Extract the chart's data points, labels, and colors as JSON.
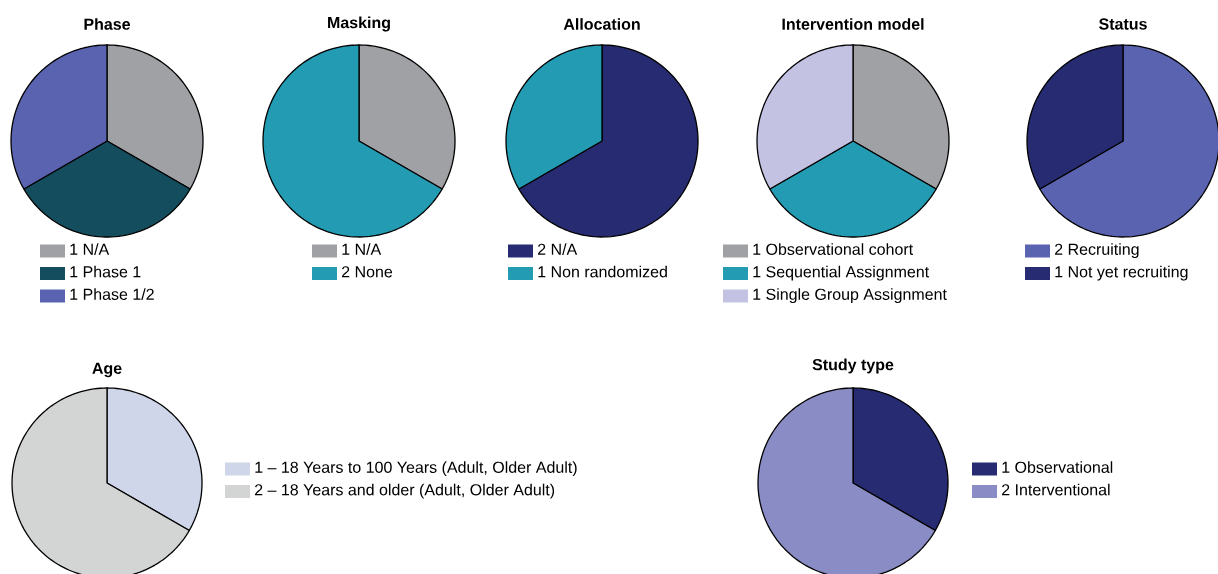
{
  "chart_data": [
    {
      "type": "pie",
      "title": "Phase",
      "categories": [
        "N/A",
        "Phase 1",
        "Phase 1/2"
      ],
      "values": [
        1,
        1,
        1
      ],
      "value_labels": [
        "1",
        "1",
        "1"
      ],
      "colors": [
        "#a0a1a5",
        "#134d5e",
        "#5a63b0"
      ],
      "legend": "bottom"
    },
    {
      "type": "pie",
      "title": "Masking",
      "categories": [
        "N/A",
        "None"
      ],
      "values": [
        1,
        2
      ],
      "value_labels": [
        "1",
        "2"
      ],
      "colors": [
        "#a0a1a5",
        "#229bb3"
      ],
      "legend": "bottom"
    },
    {
      "type": "pie",
      "title": "Allocation",
      "categories": [
        "N/A",
        "Non randomized"
      ],
      "values": [
        2,
        1
      ],
      "value_labels": [
        "2",
        "1"
      ],
      "colors": [
        "#262b72",
        "#229bb3"
      ],
      "legend": "bottom"
    },
    {
      "type": "pie",
      "title": "Intervention model",
      "categories": [
        "Observational cohort",
        "Sequential Assignment",
        "Single Group Assignment"
      ],
      "values": [
        1,
        1,
        1
      ],
      "value_labels": [
        "1",
        "1",
        "1"
      ],
      "colors": [
        "#a0a1a5",
        "#229bb3",
        "#c3c2e2"
      ],
      "legend": "bottom"
    },
    {
      "type": "pie",
      "title": "Status",
      "categories": [
        "Recruiting",
        "Not yet recruiting"
      ],
      "values": [
        2,
        1
      ],
      "value_labels": [
        "2",
        "1"
      ],
      "colors": [
        "#5a63b0",
        "#262b72"
      ],
      "legend": "bottom"
    },
    {
      "type": "pie",
      "title": "Age",
      "categories": [
        "– 18 Years to 100 Years    (Adult, Older Adult)",
        "– 18 Years and older    (Adult, Older Adult)"
      ],
      "values": [
        1,
        2
      ],
      "value_labels": [
        "1",
        "2"
      ],
      "colors": [
        "#cfd6ea",
        "#d3d5d5"
      ],
      "legend": "right"
    },
    {
      "type": "pie",
      "title": "Study type",
      "categories": [
        "Observational",
        "Interventional"
      ],
      "values": [
        1,
        2
      ],
      "value_labels": [
        "1",
        "2"
      ],
      "colors": [
        "#262b72",
        "#8a8cc5"
      ],
      "legend": "right"
    }
  ]
}
